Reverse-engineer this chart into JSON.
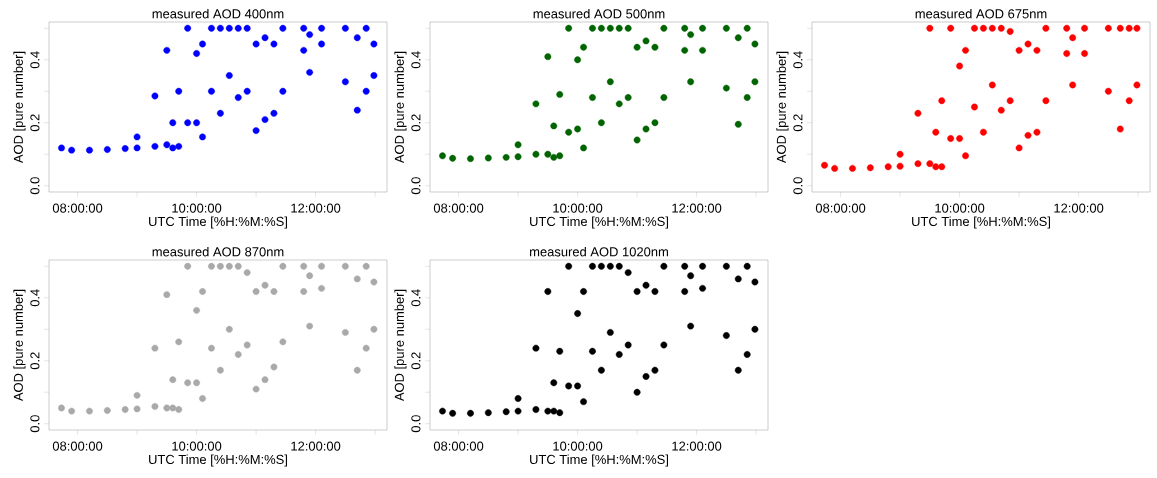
{
  "chart_data": [
    {
      "type": "scatter",
      "title": "measured AOD 400nm",
      "xlabel": "UTC Time [%H:%M:%S]",
      "ylabel": "AOD [pure number]",
      "color": "#0000ff",
      "marker": "circle",
      "xlim": [
        7.52,
        13.2
      ],
      "ylim": [
        -0.02,
        0.52
      ],
      "xticks": [
        {
          "value": 8,
          "label": "08:00:00"
        },
        {
          "value": 9,
          "label": null
        },
        {
          "value": 10,
          "label": "10:00:00"
        },
        {
          "value": 11,
          "label": null
        },
        {
          "value": 12,
          "label": "12:00:00"
        },
        {
          "value": 13,
          "label": null
        }
      ],
      "yticks": [
        {
          "value": 0,
          "label": "0.0"
        },
        {
          "value": 0.1,
          "label": null
        },
        {
          "value": 0.2,
          "label": "0.2"
        },
        {
          "value": 0.3,
          "label": null
        },
        {
          "value": 0.4,
          "label": "0.4"
        },
        {
          "value": 0.5,
          "label": null
        }
      ],
      "x": [
        7.73,
        7.9,
        8.2,
        8.5,
        8.8,
        9.0,
        9.0,
        9.3,
        9.3,
        9.5,
        9.5,
        9.6,
        9.6,
        9.7,
        9.7,
        9.85,
        9.85,
        10.0,
        10.0,
        10.1,
        10.1,
        10.25,
        10.25,
        10.4,
        10.4,
        10.55,
        10.55,
        10.7,
        10.7,
        10.85,
        10.85,
        11.0,
        11.0,
        11.15,
        11.15,
        11.3,
        11.3,
        11.45,
        11.45,
        11.8,
        11.8,
        11.9,
        11.9,
        12.1,
        12.1,
        12.5,
        12.5,
        12.7,
        12.7,
        12.85,
        12.85,
        12.98,
        12.98
      ],
      "values": [
        0.12,
        0.113,
        0.113,
        0.115,
        0.118,
        0.12,
        0.155,
        0.125,
        0.285,
        0.13,
        0.43,
        0.12,
        0.2,
        0.125,
        0.3,
        0.2,
        0.5,
        0.2,
        0.42,
        0.155,
        0.45,
        0.3,
        0.5,
        0.23,
        0.5,
        0.35,
        0.5,
        0.28,
        0.5,
        0.3,
        0.5,
        0.175,
        0.45,
        0.21,
        0.47,
        0.23,
        0.45,
        0.3,
        0.5,
        0.43,
        0.5,
        0.36,
        0.48,
        0.45,
        0.5,
        0.33,
        0.5,
        0.24,
        0.47,
        0.3,
        0.5,
        0.35,
        0.45
      ]
    },
    {
      "type": "scatter",
      "title": "measured AOD 500nm",
      "xlabel": "UTC Time [%H:%M:%S]",
      "ylabel": "AOD [pure number]",
      "color": "#006400",
      "marker": "circle",
      "xlim": [
        7.52,
        13.2
      ],
      "ylim": [
        -0.02,
        0.52
      ],
      "xticks": [
        {
          "value": 8,
          "label": "08:00:00"
        },
        {
          "value": 9,
          "label": null
        },
        {
          "value": 10,
          "label": "10:00:00"
        },
        {
          "value": 11,
          "label": null
        },
        {
          "value": 12,
          "label": "12:00:00"
        },
        {
          "value": 13,
          "label": null
        }
      ],
      "yticks": [
        {
          "value": 0,
          "label": "0.0"
        },
        {
          "value": 0.1,
          "label": null
        },
        {
          "value": 0.2,
          "label": "0.2"
        },
        {
          "value": 0.3,
          "label": null
        },
        {
          "value": 0.4,
          "label": "0.4"
        },
        {
          "value": 0.5,
          "label": null
        }
      ],
      "x": [
        7.73,
        7.9,
        8.2,
        8.5,
        8.8,
        9.0,
        9.0,
        9.3,
        9.3,
        9.5,
        9.5,
        9.6,
        9.6,
        9.7,
        9.7,
        9.85,
        9.85,
        10.0,
        10.0,
        10.1,
        10.1,
        10.25,
        10.25,
        10.4,
        10.4,
        10.55,
        10.55,
        10.7,
        10.7,
        10.85,
        10.85,
        11.0,
        11.0,
        11.15,
        11.15,
        11.3,
        11.3,
        11.45,
        11.45,
        11.8,
        11.8,
        11.9,
        11.9,
        12.1,
        12.1,
        12.5,
        12.5,
        12.7,
        12.7,
        12.85,
        12.85,
        12.98,
        12.98
      ],
      "values": [
        0.095,
        0.087,
        0.086,
        0.088,
        0.09,
        0.092,
        0.13,
        0.1,
        0.26,
        0.1,
        0.41,
        0.09,
        0.19,
        0.095,
        0.29,
        0.17,
        0.5,
        0.18,
        0.4,
        0.12,
        0.44,
        0.28,
        0.5,
        0.2,
        0.5,
        0.33,
        0.5,
        0.26,
        0.5,
        0.28,
        0.5,
        0.145,
        0.44,
        0.18,
        0.46,
        0.2,
        0.44,
        0.28,
        0.5,
        0.43,
        0.5,
        0.33,
        0.48,
        0.43,
        0.5,
        0.31,
        0.5,
        0.195,
        0.47,
        0.28,
        0.5,
        0.33,
        0.45
      ]
    },
    {
      "type": "scatter",
      "title": "measured AOD 675nm",
      "xlabel": "UTC Time [%H:%M:%S]",
      "ylabel": "AOD [pure number]",
      "color": "#ff0000",
      "marker": "circle",
      "xlim": [
        7.52,
        13.2
      ],
      "ylim": [
        -0.02,
        0.52
      ],
      "xticks": [
        {
          "value": 8,
          "label": "08:00:00"
        },
        {
          "value": 9,
          "label": null
        },
        {
          "value": 10,
          "label": "10:00:00"
        },
        {
          "value": 11,
          "label": null
        },
        {
          "value": 12,
          "label": "12:00:00"
        },
        {
          "value": 13,
          "label": null
        }
      ],
      "yticks": [
        {
          "value": 0,
          "label": "0.0"
        },
        {
          "value": 0.1,
          "label": null
        },
        {
          "value": 0.2,
          "label": "0.2"
        },
        {
          "value": 0.3,
          "label": null
        },
        {
          "value": 0.4,
          "label": "0.4"
        },
        {
          "value": 0.5,
          "label": null
        }
      ],
      "x": [
        7.73,
        7.9,
        8.2,
        8.5,
        8.8,
        9.0,
        9.0,
        9.3,
        9.3,
        9.5,
        9.5,
        9.6,
        9.6,
        9.7,
        9.7,
        9.85,
        9.85,
        10.0,
        10.0,
        10.1,
        10.1,
        10.25,
        10.25,
        10.4,
        10.4,
        10.55,
        10.55,
        10.7,
        10.7,
        10.85,
        10.85,
        11.0,
        11.0,
        11.15,
        11.15,
        11.3,
        11.3,
        11.45,
        11.45,
        11.8,
        11.8,
        11.9,
        11.9,
        12.1,
        12.1,
        12.5,
        12.5,
        12.7,
        12.7,
        12.85,
        12.85,
        12.98,
        12.98
      ],
      "values": [
        0.065,
        0.055,
        0.055,
        0.057,
        0.06,
        0.062,
        0.1,
        0.07,
        0.23,
        0.07,
        0.5,
        0.06,
        0.17,
        0.06,
        0.27,
        0.15,
        0.5,
        0.15,
        0.38,
        0.095,
        0.43,
        0.25,
        0.5,
        0.17,
        0.5,
        0.32,
        0.5,
        0.24,
        0.5,
        0.27,
        0.49,
        0.12,
        0.43,
        0.16,
        0.45,
        0.17,
        0.43,
        0.27,
        0.5,
        0.42,
        0.5,
        0.32,
        0.47,
        0.42,
        0.5,
        0.3,
        0.5,
        0.18,
        0.5,
        0.27,
        0.5,
        0.32,
        0.5
      ]
    },
    {
      "type": "scatter",
      "title": "measured AOD 870nm",
      "xlabel": "UTC Time [%H:%M:%S]",
      "ylabel": "AOD [pure number]",
      "color": "#a9a9a9",
      "marker": "circle",
      "xlim": [
        7.52,
        13.2
      ],
      "ylim": [
        -0.02,
        0.52
      ],
      "xticks": [
        {
          "value": 8,
          "label": "08:00:00"
        },
        {
          "value": 9,
          "label": null
        },
        {
          "value": 10,
          "label": "10:00:00"
        },
        {
          "value": 11,
          "label": null
        },
        {
          "value": 12,
          "label": "12:00:00"
        },
        {
          "value": 13,
          "label": null
        }
      ],
      "yticks": [
        {
          "value": 0,
          "label": "0.0"
        },
        {
          "value": 0.1,
          "label": null
        },
        {
          "value": 0.2,
          "label": "0.2"
        },
        {
          "value": 0.3,
          "label": null
        },
        {
          "value": 0.4,
          "label": "0.4"
        },
        {
          "value": 0.5,
          "label": null
        }
      ],
      "x": [
        7.73,
        7.9,
        8.2,
        8.5,
        8.8,
        9.0,
        9.0,
        9.3,
        9.3,
        9.5,
        9.5,
        9.6,
        9.6,
        9.7,
        9.7,
        9.85,
        9.85,
        10.0,
        10.0,
        10.1,
        10.1,
        10.25,
        10.25,
        10.4,
        10.4,
        10.55,
        10.55,
        10.7,
        10.7,
        10.85,
        10.85,
        11.0,
        11.0,
        11.15,
        11.15,
        11.3,
        11.3,
        11.45,
        11.45,
        11.8,
        11.8,
        11.9,
        11.9,
        12.1,
        12.1,
        12.5,
        12.5,
        12.7,
        12.7,
        12.85,
        12.85,
        12.98,
        12.98
      ],
      "values": [
        0.05,
        0.04,
        0.04,
        0.042,
        0.045,
        0.047,
        0.09,
        0.055,
        0.24,
        0.05,
        0.41,
        0.05,
        0.14,
        0.045,
        0.26,
        0.13,
        0.5,
        0.13,
        0.36,
        0.08,
        0.42,
        0.24,
        0.5,
        0.17,
        0.5,
        0.3,
        0.5,
        0.22,
        0.5,
        0.25,
        0.48,
        0.11,
        0.42,
        0.14,
        0.44,
        0.18,
        0.42,
        0.26,
        0.5,
        0.42,
        0.5,
        0.31,
        0.47,
        0.43,
        0.5,
        0.29,
        0.5,
        0.17,
        0.46,
        0.24,
        0.5,
        0.3,
        0.45
      ]
    },
    {
      "type": "scatter",
      "title": "measured AOD 1020nm",
      "xlabel": "UTC Time [%H:%M:%S]",
      "ylabel": "AOD [pure number]",
      "color": "#000000",
      "marker": "circle",
      "xlim": [
        7.52,
        13.2
      ],
      "ylim": [
        -0.02,
        0.52
      ],
      "xticks": [
        {
          "value": 8,
          "label": "08:00:00"
        },
        {
          "value": 9,
          "label": null
        },
        {
          "value": 10,
          "label": "10:00:00"
        },
        {
          "value": 11,
          "label": null
        },
        {
          "value": 12,
          "label": "12:00:00"
        },
        {
          "value": 13,
          "label": null
        }
      ],
      "yticks": [
        {
          "value": 0,
          "label": "0.0"
        },
        {
          "value": 0.1,
          "label": null
        },
        {
          "value": 0.2,
          "label": "0.2"
        },
        {
          "value": 0.3,
          "label": null
        },
        {
          "value": 0.4,
          "label": "0.4"
        },
        {
          "value": 0.5,
          "label": null
        }
      ],
      "x": [
        7.73,
        7.9,
        8.2,
        8.5,
        8.8,
        9.0,
        9.0,
        9.3,
        9.3,
        9.5,
        9.5,
        9.6,
        9.6,
        9.7,
        9.7,
        9.85,
        9.85,
        10.0,
        10.0,
        10.1,
        10.1,
        10.25,
        10.25,
        10.4,
        10.4,
        10.55,
        10.55,
        10.7,
        10.7,
        10.85,
        10.85,
        11.0,
        11.0,
        11.15,
        11.15,
        11.3,
        11.3,
        11.45,
        11.45,
        11.8,
        11.8,
        11.9,
        11.9,
        12.1,
        12.1,
        12.5,
        12.5,
        12.7,
        12.7,
        12.85,
        12.85,
        12.98,
        12.98
      ],
      "values": [
        0.04,
        0.033,
        0.033,
        0.035,
        0.038,
        0.04,
        0.08,
        0.045,
        0.24,
        0.04,
        0.42,
        0.04,
        0.13,
        0.035,
        0.23,
        0.12,
        0.5,
        0.12,
        0.35,
        0.07,
        0.42,
        0.23,
        0.5,
        0.17,
        0.5,
        0.29,
        0.5,
        0.22,
        0.5,
        0.25,
        0.48,
        0.1,
        0.42,
        0.15,
        0.44,
        0.17,
        0.42,
        0.25,
        0.5,
        0.42,
        0.5,
        0.31,
        0.47,
        0.43,
        0.5,
        0.28,
        0.5,
        0.17,
        0.46,
        0.22,
        0.5,
        0.3,
        0.45
      ]
    }
  ]
}
